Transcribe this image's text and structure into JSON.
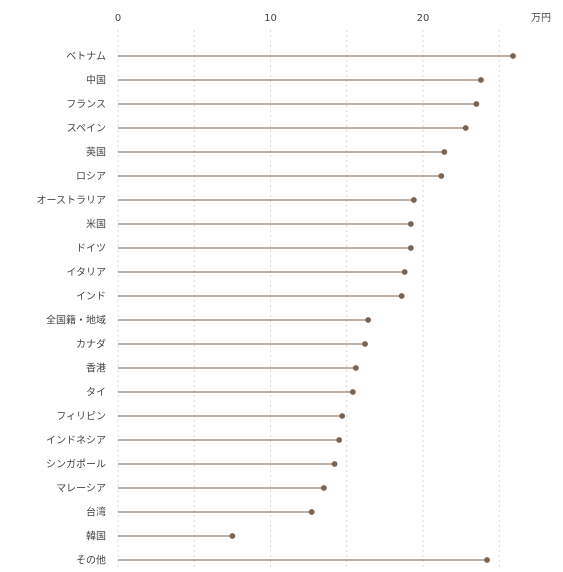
{
  "chart_data": {
    "type": "lollipop",
    "unit": "万円",
    "xlim": [
      0,
      27
    ],
    "x_ticks": [
      0,
      10,
      20
    ],
    "grid": true,
    "color": "#7a6350",
    "categories": [
      "ベトナム",
      "中国",
      "フランス",
      "スペイン",
      "英国",
      "ロシア",
      "オーストラリア",
      "米国",
      "ドイツ",
      "イタリア",
      "インド",
      "全国籍・地域",
      "カナダ",
      "香港",
      "タイ",
      "フィリピン",
      "インドネシア",
      "シンガポール",
      "マレーシア",
      "台湾",
      "韓国",
      "その他"
    ],
    "values": [
      25.9,
      23.8,
      23.5,
      22.8,
      21.4,
      21.2,
      19.4,
      19.2,
      19.2,
      18.8,
      18.6,
      16.4,
      16.2,
      15.6,
      15.4,
      14.7,
      14.5,
      14.2,
      13.5,
      12.7,
      7.5,
      24.2
    ]
  }
}
